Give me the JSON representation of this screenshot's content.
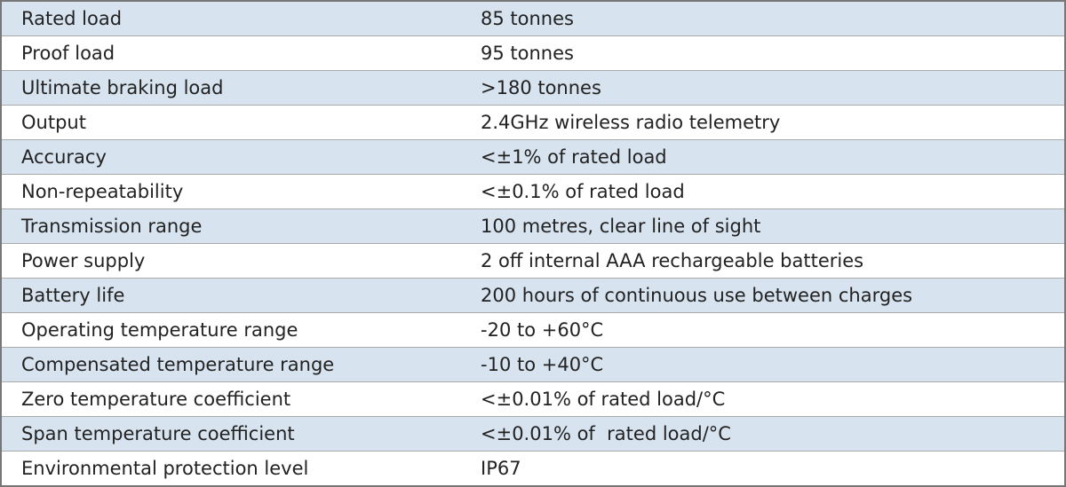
{
  "table": {
    "rows": [
      [
        "Rated load",
        "85 tonnes"
      ],
      [
        "Proof load",
        "95 tonnes"
      ],
      [
        "Ultimate braking load",
        ">180 tonnes"
      ],
      [
        "Output",
        "2.4GHz wireless radio telemetry"
      ],
      [
        "Accuracy",
        "<±1% of rated load"
      ],
      [
        "Non-repeatability",
        "<±0.1% of rated load"
      ],
      [
        "Transmission range",
        "100 metres, clear line of sight"
      ],
      [
        "Power supply",
        "2 off internal AAA rechargeable batteries"
      ],
      [
        "Battery life",
        "200 hours of continuous use between charges"
      ],
      [
        "Operating temperature range",
        "-20 to +60°C"
      ],
      [
        "Compensated temperature range",
        "-10 to +40°C"
      ],
      [
        "Zero temperature coefficient",
        "<±0.01% of rated load/°C"
      ],
      [
        "Span temperature coefficient",
        "<±0.01% of  rated load/°C"
      ],
      [
        "Environmental protection level",
        "IP67"
      ]
    ]
  }
}
